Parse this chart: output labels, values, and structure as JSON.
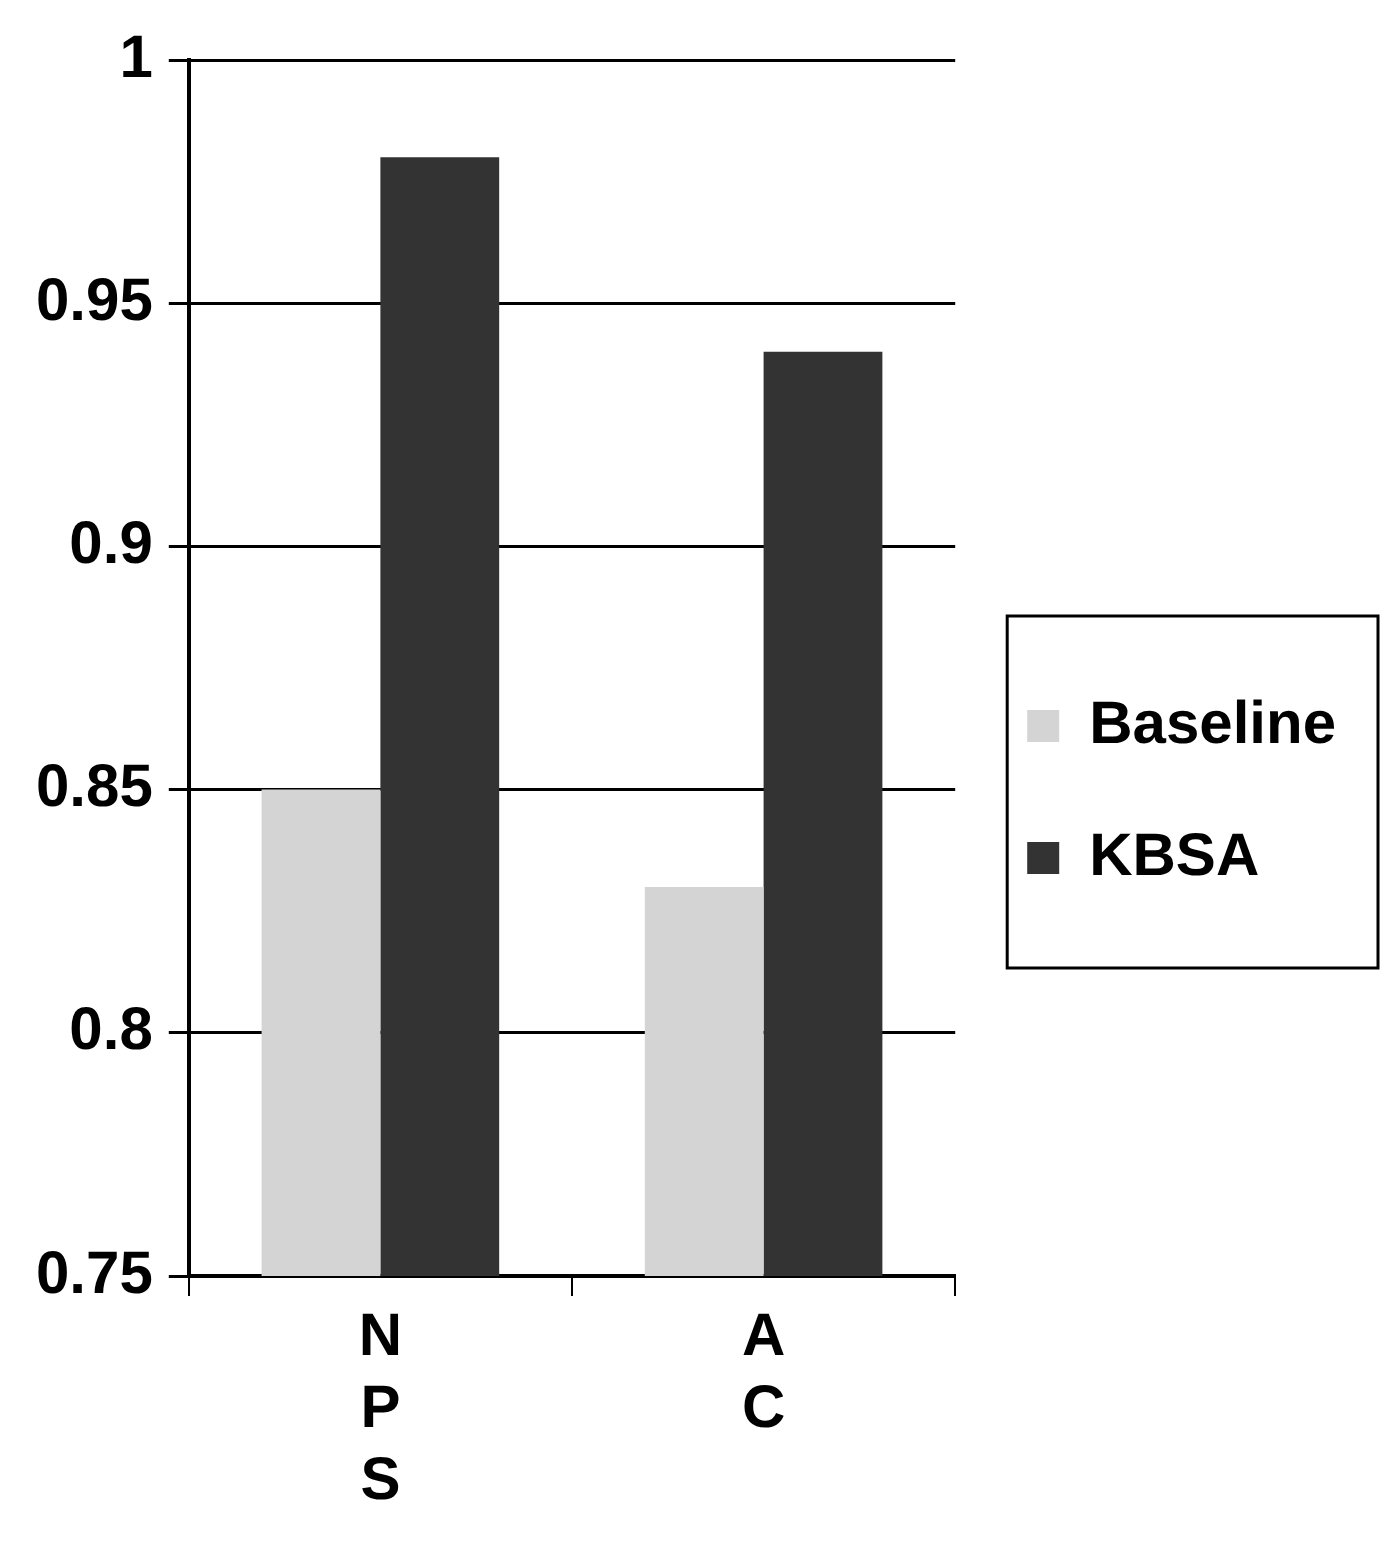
{
  "chart_data": {
    "type": "bar",
    "categories": [
      "NPS",
      "AC"
    ],
    "series": [
      {
        "name": "Baseline",
        "color": "#d4d4d4",
        "values": [
          0.85,
          0.83
        ]
      },
      {
        "name": "KBSA",
        "color": "#333333",
        "values": [
          0.98,
          0.94
        ]
      }
    ],
    "ylim": [
      0.75,
      1
    ],
    "yticks": [
      0.75,
      0.8,
      0.85,
      0.9,
      0.95,
      {
        "value": 1,
        "label": "1"
      }
    ],
    "grid": "y",
    "legend": "right"
  }
}
